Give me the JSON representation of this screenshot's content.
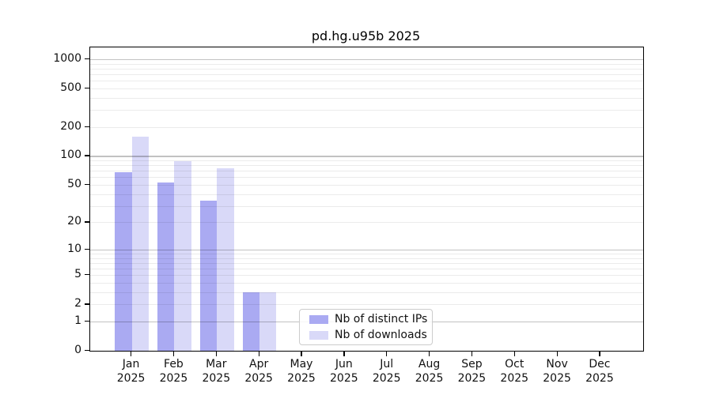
{
  "chart_data": {
    "type": "bar",
    "title": "pd.hg.u95b 2025",
    "x_categories": [
      "Jan",
      "Feb",
      "Mar",
      "Apr",
      "May",
      "Jun",
      "Jul",
      "Aug",
      "Sep",
      "Oct",
      "Nov",
      "Dec"
    ],
    "x_year_label": "2025",
    "series": [
      {
        "name": "Nb of distinct IPs",
        "color": "#aaaaf2",
        "values": [
          68,
          53,
          34,
          3,
          0,
          0,
          0,
          0,
          0,
          0,
          0,
          0
        ]
      },
      {
        "name": "Nb of downloads",
        "color": "#d9d9f8",
        "values": [
          160,
          88,
          75,
          3,
          0,
          0,
          0,
          0,
          0,
          0,
          0,
          0
        ]
      }
    ],
    "y_axis": {
      "scale": "log10(value+1)",
      "tick_values": [
        0,
        1,
        2,
        5,
        10,
        20,
        50,
        100,
        200,
        500,
        1000
      ],
      "major_grid_values": [
        1,
        10,
        100,
        1000
      ],
      "minor_grid_values": [
        2,
        3,
        4,
        5,
        6,
        7,
        8,
        9,
        20,
        30,
        40,
        50,
        60,
        70,
        80,
        90,
        200,
        300,
        400,
        500,
        600,
        700,
        800,
        900
      ],
      "ylim": [
        0,
        1320
      ]
    },
    "legend": {
      "position": "lower-center-right",
      "entries": [
        "Nb of distinct IPs",
        "Nb of downloads"
      ]
    },
    "grid": "on, drawn above bars",
    "colors": {
      "axis": "#000000",
      "major_grid": "#c7c7c7",
      "minor_grid": "#ebebeb",
      "background": "#ffffff"
    }
  }
}
